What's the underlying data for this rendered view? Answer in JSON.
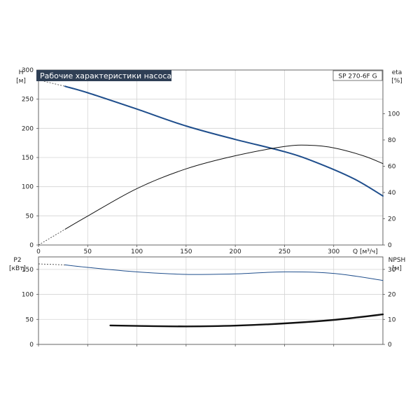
{
  "chart_data": [
    {
      "type": "line",
      "title": "Рабочие характеристики насоса",
      "model_label": "SP 270-6F G",
      "xlabel": "Q [м³/ч]",
      "ylabel_left": [
        "H",
        "[м]"
      ],
      "ylabel_right": [
        "eta",
        "[%]"
      ],
      "xlim": [
        0,
        350
      ],
      "ylim_left": [
        0,
        300
      ],
      "ylim_right": [
        0,
        133.3
      ],
      "xticks": [
        0,
        50,
        100,
        150,
        200,
        250,
        300
      ],
      "yticks_left": [
        0,
        50,
        100,
        150,
        200,
        250,
        300
      ],
      "yticks_right": [
        0,
        20,
        40,
        60,
        80,
        100
      ],
      "grid": true,
      "series": [
        {
          "axis": "left",
          "color": "#1f4e8c",
          "extrapolation": [
            [
              0,
              283
            ],
            [
              27,
              272
            ]
          ],
          "points": [
            [
              27,
              272
            ],
            [
              50,
              261
            ],
            [
              100,
              233
            ],
            [
              150,
              204
            ],
            [
              200,
              181
            ],
            [
              250,
              160
            ],
            [
              280,
              143
            ],
            [
              320,
              114
            ],
            [
              350,
              84
            ]
          ]
        },
        {
          "axis": "right",
          "color": "#111111",
          "extrapolation": [
            [
              0,
              0
            ],
            [
              27,
              12
            ]
          ],
          "points": [
            [
              27,
              12
            ],
            [
              50,
              22
            ],
            [
              100,
              43
            ],
            [
              150,
              58
            ],
            [
              200,
              68
            ],
            [
              250,
              75
            ],
            [
              275,
              76
            ],
            [
              300,
              74
            ],
            [
              330,
              68
            ],
            [
              350,
              62
            ]
          ]
        }
      ]
    },
    {
      "type": "line",
      "ylabel_left": [
        "P2",
        "[кВт]"
      ],
      "ylabel_right": [
        "NPSH",
        "[м]"
      ],
      "xlim": [
        0,
        350
      ],
      "ylim_left": [
        0,
        175
      ],
      "ylim_right": [
        0,
        35
      ],
      "xticks": [
        0,
        50,
        100,
        150,
        200,
        250,
        300
      ],
      "yticks_left": [
        0,
        50,
        100,
        150
      ],
      "yticks_right": [
        0,
        10,
        20,
        30
      ],
      "grid": true,
      "series": [
        {
          "axis": "left",
          "color": "#1f4e8c",
          "extrapolation": [
            [
              0,
              161
            ],
            [
              27,
              159
            ]
          ],
          "points": [
            [
              27,
              159
            ],
            [
              50,
              154
            ],
            [
              100,
              145
            ],
            [
              150,
              140
            ],
            [
              200,
              141
            ],
            [
              250,
              145
            ],
            [
              300,
              142
            ],
            [
              350,
              128
            ]
          ]
        },
        {
          "axis": "right",
          "color": "#111111",
          "points": [
            [
              73,
              7.6
            ],
            [
              100,
              7.4
            ],
            [
              150,
              7.2
            ],
            [
              200,
              7.5
            ],
            [
              250,
              8.4
            ],
            [
              300,
              9.8
            ],
            [
              350,
              12.0
            ]
          ]
        }
      ]
    }
  ]
}
